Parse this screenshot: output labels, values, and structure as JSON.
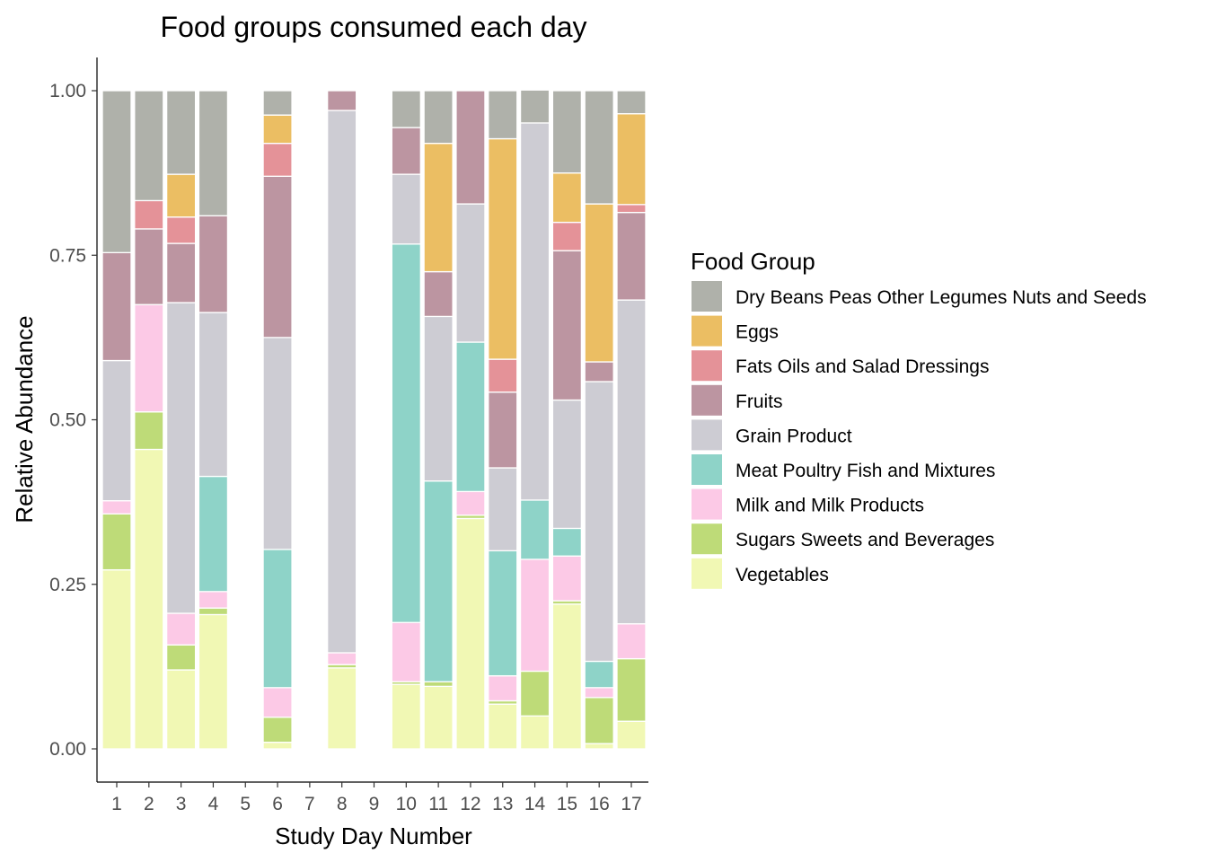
{
  "chart_data": {
    "type": "bar",
    "stacked": true,
    "title": "Food groups consumed each day",
    "xlabel": "Study Day Number",
    "ylabel": "Relative Abundance",
    "ylim": [
      0,
      1
    ],
    "yticks": [
      "0.00",
      "0.25",
      "0.50",
      "0.75",
      "1.00"
    ],
    "categories": [
      "1",
      "2",
      "3",
      "4",
      "5",
      "6",
      "7",
      "8",
      "9",
      "10",
      "11",
      "12",
      "13",
      "14",
      "15",
      "16",
      "17"
    ],
    "grid": false,
    "legend": {
      "title": "Food Group",
      "position": "right"
    },
    "series": [
      {
        "name": "Vegetables",
        "color": "#F1F8B4",
        "values": [
          0.272,
          0.455,
          0.12,
          0.204,
          0,
          0.01,
          0,
          0.123,
          0,
          0.098,
          0.095,
          0.35,
          0.068,
          0.05,
          0.22,
          0.008,
          0.042
        ]
      },
      {
        "name": "Sugars Sweets and Beverages",
        "color": "#BEDB78",
        "values": [
          0.085,
          0.057,
          0.038,
          0.01,
          0,
          0.038,
          0,
          0.005,
          0,
          0.004,
          0.007,
          0.005,
          0.005,
          0.068,
          0.005,
          0.07,
          0.095
        ]
      },
      {
        "name": "Milk and Milk Products",
        "color": "#FCC9E6",
        "values": [
          0.02,
          0.163,
          0.048,
          0.025,
          0,
          0.045,
          0,
          0.018,
          0,
          0.09,
          0,
          0.036,
          0.038,
          0.17,
          0.068,
          0.015,
          0.053
        ]
      },
      {
        "name": "Meat Poultry Fish and Mixtures",
        "color": "#8ED3C8",
        "values": [
          0,
          0,
          0,
          0.175,
          0,
          0.21,
          0,
          0,
          0,
          0.575,
          0.305,
          0.227,
          0.19,
          0.09,
          0.042,
          0.04,
          0
        ]
      },
      {
        "name": "Grain Product",
        "color": "#CDCCD3",
        "values": [
          0.213,
          0,
          0.472,
          0.249,
          0,
          0.322,
          0,
          0.824,
          0,
          0.106,
          0.25,
          0.21,
          0.126,
          0.573,
          0.195,
          0.425,
          0.492
        ]
      },
      {
        "name": "Fruits",
        "color": "#BC95A1",
        "values": [
          0.164,
          0.115,
          0.09,
          0.147,
          0,
          0.245,
          0,
          0.03,
          0,
          0.071,
          0.068,
          0.172,
          0.115,
          0,
          0.227,
          0.03,
          0.133
        ]
      },
      {
        "name": "Fats Oils and Salad Dressings",
        "color": "#E49298",
        "values": [
          0,
          0.043,
          0.04,
          0,
          0,
          0.05,
          0,
          0,
          0,
          0,
          0,
          0,
          0.05,
          0,
          0.043,
          0,
          0.012
        ]
      },
      {
        "name": "Eggs",
        "color": "#EBBE63",
        "values": [
          0,
          0,
          0.065,
          0,
          0,
          0.043,
          0,
          0,
          0,
          0,
          0.195,
          0,
          0.335,
          0,
          0.075,
          0.24,
          0.138
        ]
      },
      {
        "name": "Dry Beans Peas Other Legumes Nuts and Seeds",
        "color": "#AFB1AA",
        "values": [
          0.246,
          0.167,
          0.127,
          0.19,
          0,
          0.037,
          0,
          0,
          0,
          0.056,
          0.08,
          0,
          0.073,
          0.05,
          0.125,
          0.172,
          0.035
        ]
      }
    ]
  }
}
